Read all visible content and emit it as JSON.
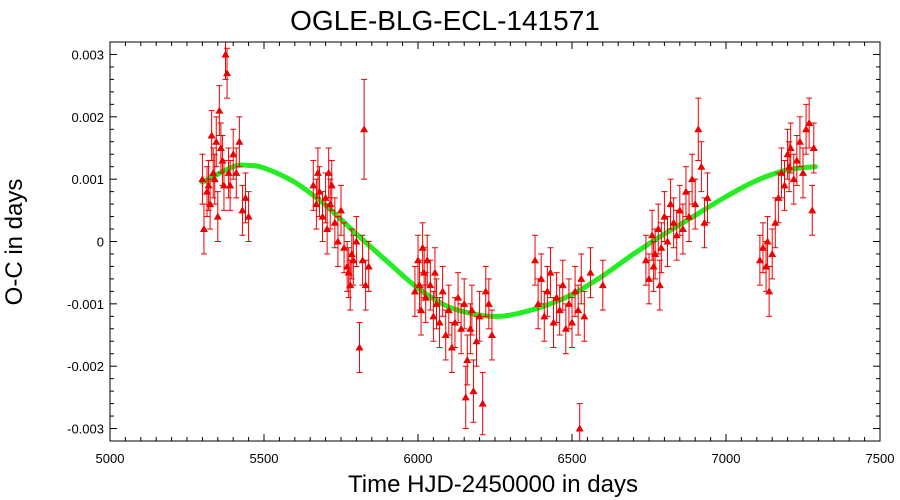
{
  "chart_data": {
    "type": "scatter",
    "title": "OGLE-BLG-ECL-141571",
    "xlabel": "Time HJD-2450000 in days",
    "ylabel": "O-C in days",
    "xlim": [
      5000,
      7500
    ],
    "ylim": [
      -0.0032,
      0.0032
    ],
    "xticks": [
      "5000",
      "5500",
      "6000",
      "6500",
      "7000",
      "7500"
    ],
    "yticks": [
      "-0.003",
      "-0.002",
      "-0.001",
      "0",
      "0.001",
      "0.002",
      "0.003"
    ],
    "grid": false,
    "legend": "none",
    "colors": {
      "points": "#ee0000",
      "fit": "#22ee22"
    },
    "fit_curve": {
      "name": "",
      "x": [
        5300,
        5400,
        5450,
        5500,
        5600,
        5700,
        5800,
        5900,
        6000,
        6100,
        6200,
        6250,
        6300,
        6400,
        6500,
        6600,
        6700,
        6800,
        6900,
        7000,
        7100,
        7200,
        7290
      ],
      "y": [
        0.00095,
        0.0012,
        0.00122,
        0.00118,
        0.00095,
        0.00058,
        0.00012,
        -0.00032,
        -0.00075,
        -0.00105,
        -0.00118,
        -0.0012,
        -0.00118,
        -0.00105,
        -0.00085,
        -0.00055,
        -0.0002,
        0.00012,
        0.00042,
        0.00072,
        0.00098,
        0.00115,
        0.0012
      ]
    },
    "series": [
      {
        "name": "",
        "points": [
          [
            5300,
            0.001,
            0.0004
          ],
          [
            5305,
            0.0002,
            0.0004
          ],
          [
            5315,
            0.0008,
            0.0004
          ],
          [
            5320,
            0.0009,
            0.0004
          ],
          [
            5325,
            0.0006,
            0.0004
          ],
          [
            5330,
            0.0017,
            0.0004
          ],
          [
            5335,
            0.0011,
            0.0004
          ],
          [
            5340,
            0.001,
            0.0004
          ],
          [
            5345,
            0.0016,
            0.0004
          ],
          [
            5350,
            0.0004,
            0.0004
          ],
          [
            5355,
            0.0021,
            0.0004
          ],
          [
            5360,
            0.0015,
            0.0004
          ],
          [
            5365,
            0.0013,
            0.0004
          ],
          [
            5370,
            0.0009,
            0.0004
          ],
          [
            5375,
            0.003,
            0.0004
          ],
          [
            5380,
            0.0027,
            0.0004
          ],
          [
            5385,
            0.0011,
            0.0004
          ],
          [
            5390,
            0.0009,
            0.0004
          ],
          [
            5400,
            0.0014,
            0.0004
          ],
          [
            5410,
            0.0011,
            0.0004
          ],
          [
            5420,
            0.0016,
            0.0004
          ],
          [
            5430,
            0.0005,
            0.0004
          ],
          [
            5440,
            0.0007,
            0.0004
          ],
          [
            5450,
            0.0004,
            0.0004
          ],
          [
            5660,
            0.0009,
            0.0004
          ],
          [
            5670,
            0.0006,
            0.0004
          ],
          [
            5675,
            0.0011,
            0.0004
          ],
          [
            5680,
            0.0008,
            0.0004
          ],
          [
            5690,
            0.0004,
            0.0004
          ],
          [
            5700,
            0.0007,
            0.0004
          ],
          [
            5705,
            0.0002,
            0.0004
          ],
          [
            5710,
            0.0011,
            0.0004
          ],
          [
            5715,
            0.0006,
            0.0004
          ],
          [
            5720,
            0.0009,
            0.0004
          ],
          [
            5730,
            0.0003,
            0.0004
          ],
          [
            5740,
            0.0,
            0.0004
          ],
          [
            5750,
            0.0005,
            0.0004
          ],
          [
            5760,
            -0.0001,
            0.0004
          ],
          [
            5770,
            -0.0004,
            0.0004
          ],
          [
            5775,
            -0.0005,
            0.0004
          ],
          [
            5780,
            -0.0007,
            0.0004
          ],
          [
            5785,
            -0.0002,
            0.0004
          ],
          [
            5790,
            -0.0003,
            0.0004
          ],
          [
            5800,
            0.0,
            0.0004
          ],
          [
            5810,
            -0.0017,
            0.0004
          ],
          [
            5820,
            -0.0003,
            0.0004
          ],
          [
            5825,
            0.0018,
            0.0008
          ],
          [
            5830,
            -0.0007,
            0.0004
          ],
          [
            5840,
            -0.0004,
            0.0004
          ],
          [
            5990,
            -0.0008,
            0.0004
          ],
          [
            6000,
            -0.0003,
            0.0004
          ],
          [
            6005,
            -0.0007,
            0.0004
          ],
          [
            6010,
            -0.0011,
            0.0004
          ],
          [
            6015,
            -0.0001,
            0.0004
          ],
          [
            6020,
            -0.0005,
            0.0004
          ],
          [
            6025,
            -0.0009,
            0.0004
          ],
          [
            6030,
            -0.0003,
            0.0004
          ],
          [
            6040,
            -0.0007,
            0.0004
          ],
          [
            6050,
            -0.0012,
            0.0004
          ],
          [
            6055,
            -0.0005,
            0.0004
          ],
          [
            6060,
            -0.001,
            0.0004
          ],
          [
            6070,
            -0.0013,
            0.0004
          ],
          [
            6080,
            -0.0008,
            0.0004
          ],
          [
            6090,
            -0.0015,
            0.0004
          ],
          [
            6100,
            -0.0011,
            0.0004
          ],
          [
            6110,
            -0.0017,
            0.0004
          ],
          [
            6120,
            -0.0013,
            0.0004
          ],
          [
            6130,
            -0.0009,
            0.0004
          ],
          [
            6140,
            -0.0014,
            0.0004
          ],
          [
            6150,
            -0.001,
            0.0004
          ],
          [
            6155,
            -0.0025,
            0.0005
          ],
          [
            6160,
            -0.0019,
            0.0004
          ],
          [
            6170,
            -0.0014,
            0.0004
          ],
          [
            6175,
            -0.0011,
            0.0004
          ],
          [
            6180,
            -0.0024,
            0.0005
          ],
          [
            6190,
            -0.0016,
            0.0004
          ],
          [
            6200,
            -0.0012,
            0.0004
          ],
          [
            6210,
            -0.0026,
            0.0005
          ],
          [
            6220,
            -0.0008,
            0.0004
          ],
          [
            6230,
            -0.001,
            0.0004
          ],
          [
            6240,
            -0.0015,
            0.0004
          ],
          [
            6380,
            -0.0003,
            0.0004
          ],
          [
            6390,
            -0.001,
            0.0004
          ],
          [
            6400,
            -0.0006,
            0.0004
          ],
          [
            6410,
            -0.0012,
            0.0004
          ],
          [
            6420,
            -0.0008,
            0.0004
          ],
          [
            6430,
            -0.0005,
            0.0004
          ],
          [
            6440,
            -0.0013,
            0.0004
          ],
          [
            6450,
            -0.0009,
            0.0004
          ],
          [
            6460,
            -0.0011,
            0.0004
          ],
          [
            6470,
            -0.0007,
            0.0004
          ],
          [
            6480,
            -0.0014,
            0.0004
          ],
          [
            6490,
            -0.001,
            0.0004
          ],
          [
            6500,
            -0.0013,
            0.0004
          ],
          [
            6510,
            -0.0008,
            0.0004
          ],
          [
            6520,
            -0.0011,
            0.0004
          ],
          [
            6525,
            -0.003,
            0.0004
          ],
          [
            6530,
            -0.0006,
            0.0004
          ],
          [
            6540,
            -0.0012,
            0.0004
          ],
          [
            6560,
            -0.0005,
            0.0004
          ],
          [
            6600,
            -0.0007,
            0.0004
          ],
          [
            6740,
            -0.0003,
            0.0004
          ],
          [
            6750,
            -0.0006,
            0.0004
          ],
          [
            6760,
            0.0001,
            0.0004
          ],
          [
            6765,
            -0.0004,
            0.0004
          ],
          [
            6770,
            -0.0002,
            0.0004
          ],
          [
            6780,
            0.0002,
            0.0004
          ],
          [
            6785,
            -0.0007,
            0.0004
          ],
          [
            6790,
            -0.0001,
            0.0004
          ],
          [
            6800,
            0.0004,
            0.0004
          ],
          [
            6810,
            0.0,
            0.0004
          ],
          [
            6820,
            0.0006,
            0.0004
          ],
          [
            6830,
            0.0003,
            0.0004
          ],
          [
            6840,
            0.0001,
            0.0004
          ],
          [
            6850,
            0.0005,
            0.0004
          ],
          [
            6860,
            0.0002,
            0.0004
          ],
          [
            6870,
            0.0008,
            0.0004
          ],
          [
            6880,
            0.0004,
            0.0004
          ],
          [
            6890,
            0.001,
            0.0004
          ],
          [
            6900,
            0.0006,
            0.0004
          ],
          [
            6910,
            0.0018,
            0.0005
          ],
          [
            6920,
            0.0012,
            0.0004
          ],
          [
            6930,
            0.0003,
            0.0004
          ],
          [
            6940,
            0.0007,
            0.0004
          ],
          [
            7110,
            -0.0003,
            0.0004
          ],
          [
            7120,
            -0.0001,
            0.0004
          ],
          [
            7130,
            -0.0004,
            0.0004
          ],
          [
            7135,
            0.0,
            0.0004
          ],
          [
            7140,
            -0.0008,
            0.0004
          ],
          [
            7150,
            -0.0002,
            0.0004
          ],
          [
            7160,
            0.0003,
            0.0004
          ],
          [
            7170,
            0.0007,
            0.0004
          ],
          [
            7180,
            0.0011,
            0.0004
          ],
          [
            7190,
            0.0009,
            0.0004
          ],
          [
            7200,
            0.0014,
            0.0004
          ],
          [
            7205,
            0.0012,
            0.0004
          ],
          [
            7210,
            0.0015,
            0.0004
          ],
          [
            7220,
            0.001,
            0.0004
          ],
          [
            7230,
            0.0013,
            0.0004
          ],
          [
            7240,
            0.0016,
            0.0004
          ],
          [
            7250,
            0.0011,
            0.0004
          ],
          [
            7260,
            0.0018,
            0.0004
          ],
          [
            7270,
            0.0019,
            0.0004
          ],
          [
            7280,
            0.0005,
            0.0004
          ],
          [
            7285,
            0.0015,
            0.0004
          ]
        ]
      }
    ]
  }
}
